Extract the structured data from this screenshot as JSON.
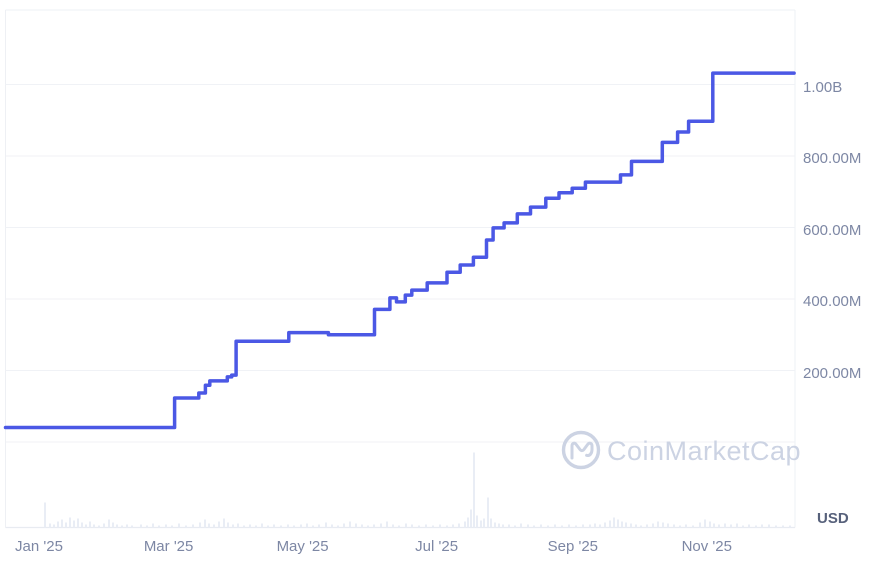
{
  "watermark": {
    "icon": "coinmarketcap-logo-icon",
    "text": "CoinMarketCap"
  },
  "y_axis": {
    "unit_label": "USD",
    "ticks": [
      {
        "label": "1.00B",
        "value": 1000000000
      },
      {
        "label": "800.00M",
        "value": 800000000
      },
      {
        "label": "600.00M",
        "value": 600000000
      },
      {
        "label": "400.00M",
        "value": 400000000
      },
      {
        "label": "200.00M",
        "value": 200000000
      }
    ],
    "baseline_value": 0
  },
  "x_axis": {
    "ticks": [
      {
        "label": "Jan '25",
        "date": "2025-01-01"
      },
      {
        "label": "Mar '25",
        "date": "2025-03-01"
      },
      {
        "label": "May '25",
        "date": "2025-05-01"
      },
      {
        "label": "Jul '25",
        "date": "2025-07-01"
      },
      {
        "label": "Sep '25",
        "date": "2025-09-01"
      },
      {
        "label": "Nov '25",
        "date": "2025-11-01"
      }
    ]
  },
  "chart_data": {
    "type": "line",
    "step_interpolation": true,
    "grid": "horizontal",
    "legend": "none",
    "unit": "USD",
    "title": "",
    "xlabel": "",
    "ylabel": "USD",
    "x_range": [
      "2024-12-14",
      "2025-12-08"
    ],
    "ylim": [
      0,
      1100000000
    ],
    "series": [
      {
        "name": "value_usd",
        "points": [
          [
            "2024-12-14",
            40500000
          ],
          [
            "2025-03-01",
            123000000
          ],
          [
            "2025-03-12",
            137000000
          ],
          [
            "2025-03-15",
            159000000
          ],
          [
            "2025-03-17",
            171000000
          ],
          [
            "2025-03-25",
            182000000
          ],
          [
            "2025-03-27",
            187000000
          ],
          [
            "2025-03-29",
            282000000
          ],
          [
            "2025-04-22",
            306000000
          ],
          [
            "2025-05-10",
            300000000
          ],
          [
            "2025-05-31",
            371000000
          ],
          [
            "2025-06-07",
            403000000
          ],
          [
            "2025-06-10",
            392000000
          ],
          [
            "2025-06-14",
            411000000
          ],
          [
            "2025-06-17",
            425000000
          ],
          [
            "2025-06-24",
            445000000
          ],
          [
            "2025-07-03",
            475000000
          ],
          [
            "2025-07-09",
            495000000
          ],
          [
            "2025-07-15",
            517000000
          ],
          [
            "2025-07-21",
            565000000
          ],
          [
            "2025-07-24",
            599000000
          ],
          [
            "2025-07-29",
            613000000
          ],
          [
            "2025-08-04",
            638000000
          ],
          [
            "2025-08-10",
            657000000
          ],
          [
            "2025-08-17",
            682000000
          ],
          [
            "2025-08-23",
            697000000
          ],
          [
            "2025-08-29",
            710000000
          ],
          [
            "2025-09-04",
            727000000
          ],
          [
            "2025-09-20",
            747000000
          ],
          [
            "2025-09-25",
            785000000
          ],
          [
            "2025-10-09",
            838000000
          ],
          [
            "2025-10-16",
            867000000
          ],
          [
            "2025-10-21",
            897000000
          ],
          [
            "2025-11-01",
            1032000000
          ],
          [
            "2025-12-08",
            1032000000
          ]
        ]
      }
    ],
    "volume_bars_note": "faint volume bars along bottom baseline; no value axis shown; [x_px, height_px]",
    "volume_bars": [
      [
        45,
        25
      ],
      [
        50,
        4
      ],
      [
        54,
        3
      ],
      [
        58,
        6
      ],
      [
        62,
        8
      ],
      [
        66,
        5
      ],
      [
        70,
        10
      ],
      [
        74,
        7
      ],
      [
        78,
        9
      ],
      [
        82,
        5
      ],
      [
        86,
        3
      ],
      [
        90,
        6
      ],
      [
        94,
        3
      ],
      [
        99,
        2
      ],
      [
        104,
        4
      ],
      [
        109,
        8
      ],
      [
        113,
        5
      ],
      [
        117,
        3
      ],
      [
        122,
        2
      ],
      [
        127,
        3
      ],
      [
        132,
        2
      ],
      [
        141,
        3
      ],
      [
        147,
        2
      ],
      [
        153,
        4
      ],
      [
        159,
        2
      ],
      [
        166,
        3
      ],
      [
        172,
        2
      ],
      [
        179,
        4
      ],
      [
        186,
        2
      ],
      [
        193,
        3
      ],
      [
        200,
        5
      ],
      [
        205,
        8
      ],
      [
        209,
        4
      ],
      [
        214,
        3
      ],
      [
        219,
        6
      ],
      [
        224,
        9
      ],
      [
        228,
        5
      ],
      [
        233,
        3
      ],
      [
        238,
        4
      ],
      [
        244,
        2
      ],
      [
        250,
        3
      ],
      [
        256,
        2
      ],
      [
        262,
        4
      ],
      [
        268,
        2
      ],
      [
        274,
        3
      ],
      [
        281,
        2
      ],
      [
        288,
        3
      ],
      [
        294,
        2
      ],
      [
        301,
        3
      ],
      [
        307,
        4
      ],
      [
        313,
        2
      ],
      [
        319,
        3
      ],
      [
        326,
        5
      ],
      [
        332,
        3
      ],
      [
        338,
        2
      ],
      [
        344,
        4
      ],
      [
        350,
        6
      ],
      [
        356,
        4
      ],
      [
        362,
        3
      ],
      [
        368,
        2
      ],
      [
        374,
        3
      ],
      [
        381,
        4
      ],
      [
        387,
        6
      ],
      [
        393,
        3
      ],
      [
        399,
        2
      ],
      [
        406,
        4
      ],
      [
        412,
        3
      ],
      [
        419,
        2
      ],
      [
        426,
        3
      ],
      [
        433,
        2
      ],
      [
        440,
        3
      ],
      [
        447,
        2
      ],
      [
        453,
        3
      ],
      [
        459,
        4
      ],
      [
        465,
        6
      ],
      [
        468,
        10
      ],
      [
        471,
        18
      ],
      [
        474,
        75
      ],
      [
        477,
        12
      ],
      [
        481,
        7
      ],
      [
        484,
        9
      ],
      [
        488,
        30
      ],
      [
        491,
        9
      ],
      [
        495,
        5
      ],
      [
        499,
        4
      ],
      [
        503,
        3
      ],
      [
        509,
        3
      ],
      [
        515,
        2
      ],
      [
        521,
        4
      ],
      [
        528,
        3
      ],
      [
        534,
        2
      ],
      [
        541,
        3
      ],
      [
        548,
        2
      ],
      [
        555,
        3
      ],
      [
        562,
        2
      ],
      [
        569,
        3
      ],
      [
        576,
        2
      ],
      [
        583,
        3
      ],
      [
        590,
        3
      ],
      [
        595,
        4
      ],
      [
        600,
        3
      ],
      [
        605,
        5
      ],
      [
        610,
        7
      ],
      [
        614,
        10
      ],
      [
        618,
        8
      ],
      [
        622,
        6
      ],
      [
        626,
        5
      ],
      [
        631,
        4
      ],
      [
        636,
        3
      ],
      [
        641,
        2
      ],
      [
        647,
        3
      ],
      [
        653,
        4
      ],
      [
        658,
        6
      ],
      [
        663,
        5
      ],
      [
        668,
        4
      ],
      [
        674,
        3
      ],
      [
        680,
        2
      ],
      [
        686,
        3
      ],
      [
        693,
        2
      ],
      [
        700,
        5
      ],
      [
        705,
        8
      ],
      [
        710,
        6
      ],
      [
        714,
        4
      ],
      [
        719,
        3
      ],
      [
        725,
        4
      ],
      [
        731,
        3
      ],
      [
        737,
        4
      ],
      [
        743,
        2
      ],
      [
        749,
        3
      ],
      [
        756,
        2
      ],
      [
        762,
        3
      ],
      [
        769,
        3
      ],
      [
        776,
        2
      ],
      [
        783,
        2
      ],
      [
        790,
        2
      ]
    ]
  },
  "colors": {
    "background": "#ffffff",
    "line": "#4b58e5",
    "grid": "#f0f2f6",
    "border": "#eef0f4",
    "axis_line": "#e8ebf1",
    "tick_text": "#7d87a4",
    "unit_text": "#57617b",
    "volume_bar": "#e9edf5",
    "watermark": "#ccd3e3"
  }
}
